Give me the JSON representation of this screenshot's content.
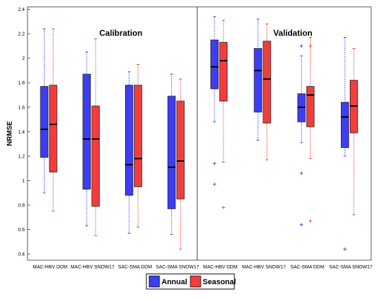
{
  "chart_data": {
    "type": "boxplot",
    "ylabel": "NRMSE",
    "ylim": [
      0.35,
      2.42
    ],
    "yticks": [
      0.4,
      0.6,
      0.8,
      1,
      1.2,
      1.4,
      1.6,
      1.8,
      2,
      2.2,
      2.4
    ],
    "ytick_labels": [
      "0.4",
      "0.6",
      "0.8",
      "1",
      "1.2",
      "1.4",
      "1.6",
      "1.8",
      "2",
      "2.2",
      "2.4"
    ],
    "grid": false,
    "legend_position": "bottom-center",
    "series_colors": {
      "Annual": "#3d3df2",
      "Seasonal": "#f23d3d"
    },
    "legend": [
      {
        "name": "Annual",
        "color": "#3d3df2"
      },
      {
        "name": "Seasonal",
        "color": "#f23d3d"
      }
    ],
    "panels": [
      {
        "title": "Calibration",
        "categories": [
          "MAC-HBV DDM",
          "MAC-HBV SNOW17",
          "SAC-SMA DDM",
          "SAC-SMA SNOW17"
        ],
        "boxes": [
          {
            "series": "Annual",
            "whisker_low": 0.9,
            "q1": 1.19,
            "median": 1.42,
            "q3": 1.77,
            "whisker_high": 2.24,
            "outliers": []
          },
          {
            "series": "Seasonal",
            "whisker_low": 0.75,
            "q1": 1.07,
            "median": 1.46,
            "q3": 1.78,
            "whisker_high": 2.24,
            "outliers": []
          },
          {
            "series": "Annual",
            "whisker_low": 0.63,
            "q1": 0.93,
            "median": 1.34,
            "q3": 1.87,
            "whisker_high": 2.05,
            "outliers": []
          },
          {
            "series": "Seasonal",
            "whisker_low": 0.55,
            "q1": 0.79,
            "median": 1.34,
            "q3": 1.61,
            "whisker_high": 2.16,
            "outliers": []
          },
          {
            "series": "Annual",
            "whisker_low": 0.57,
            "q1": 0.88,
            "median": 1.13,
            "q3": 1.78,
            "whisker_high": 1.89,
            "outliers": []
          },
          {
            "series": "Seasonal",
            "whisker_low": 0.62,
            "q1": 0.95,
            "median": 1.18,
            "q3": 1.78,
            "whisker_high": 1.95,
            "outliers": []
          },
          {
            "series": "Annual",
            "whisker_low": 0.56,
            "q1": 0.77,
            "median": 1.11,
            "q3": 1.69,
            "whisker_high": 1.87,
            "outliers": []
          },
          {
            "series": "Seasonal",
            "whisker_low": 0.44,
            "q1": 0.85,
            "median": 1.16,
            "q3": 1.65,
            "whisker_high": 1.83,
            "outliers": []
          }
        ]
      },
      {
        "title": "Validation",
        "categories": [
          "MAC-HBV DDM",
          "MAC-HBV SNOW17",
          "SAC-SMA DDM",
          "SAC-SMA SNOW17"
        ],
        "boxes": [
          {
            "series": "Annual",
            "whisker_low": 1.48,
            "q1": 1.75,
            "median": 1.93,
            "q3": 2.15,
            "whisker_high": 2.34,
            "outliers": [
              1.14,
              0.97
            ]
          },
          {
            "series": "Seasonal",
            "whisker_low": 1.15,
            "q1": 1.65,
            "median": 1.98,
            "q3": 2.13,
            "whisker_high": 2.31,
            "outliers": [
              0.78
            ]
          },
          {
            "series": "Annual",
            "whisker_low": 1.33,
            "q1": 1.56,
            "median": 1.9,
            "q3": 2.08,
            "whisker_high": 2.32,
            "outliers": []
          },
          {
            "series": "Seasonal",
            "whisker_low": 1.17,
            "q1": 1.47,
            "median": 1.83,
            "q3": 2.14,
            "whisker_high": 2.28,
            "outliers": []
          },
          {
            "series": "Annual",
            "whisker_low": 1.31,
            "q1": 1.48,
            "median": 1.6,
            "q3": 1.71,
            "whisker_high": 2.02,
            "outliers": [
              2.1,
              1.06,
              0.64
            ]
          },
          {
            "series": "Seasonal",
            "whisker_low": 1.18,
            "q1": 1.44,
            "median": 1.7,
            "q3": 1.77,
            "whisker_high": 2.17,
            "outliers": [
              2.1,
              0.67
            ]
          },
          {
            "series": "Annual",
            "whisker_low": 1.2,
            "q1": 1.27,
            "median": 1.52,
            "q3": 1.64,
            "whisker_high": 2.17,
            "outliers": [
              0.44
            ]
          },
          {
            "series": "Seasonal",
            "whisker_low": 0.72,
            "q1": 1.39,
            "median": 1.61,
            "q3": 1.82,
            "whisker_high": 2.08,
            "outliers": []
          }
        ]
      }
    ]
  }
}
